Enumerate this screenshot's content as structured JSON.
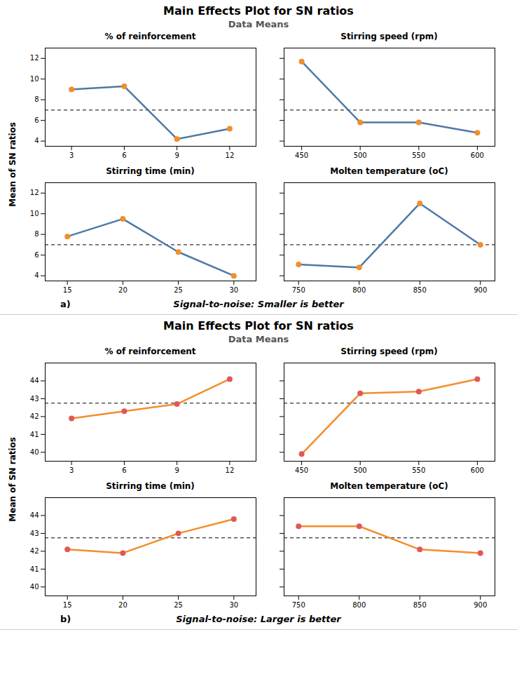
{
  "chart_data": [
    {
      "type": "line",
      "title": "Main Effects Plot for SN ratios",
      "subtitle": "Data Means",
      "ylabel": "Mean of SN ratios",
      "annotations": [
        "a)",
        "Signal-to-noise: Smaller is better"
      ],
      "charts": [
        {
          "type": "line",
          "title": "% of reinforcement",
          "x": [
            3,
            6,
            9,
            12
          ],
          "values": [
            9.0,
            9.3,
            4.2,
            5.2
          ],
          "xlim": [
            1.5,
            13.5
          ],
          "ylim": [
            3.5,
            13
          ],
          "xticks": [
            3,
            6,
            9,
            12
          ],
          "yticks": [
            4,
            6,
            8,
            10,
            12
          ],
          "reference_line": 7.0,
          "marker": "o",
          "line_style": "solid"
        },
        {
          "type": "line",
          "title": "Stirring speed (rpm)",
          "x": [
            450,
            500,
            550,
            600
          ],
          "values": [
            11.7,
            5.8,
            5.8,
            4.8
          ],
          "xlim": [
            435,
            615
          ],
          "ylim": [
            3.5,
            13
          ],
          "xticks": [
            450,
            500,
            550,
            600
          ],
          "yticks": [
            4,
            6,
            8,
            10,
            12
          ],
          "reference_line": 7.0,
          "marker": "o",
          "line_style": "solid",
          "tick_labels": "x"
        },
        {
          "type": "line",
          "title": "Stirring time (min)",
          "x": [
            15,
            20,
            25,
            30
          ],
          "values": [
            7.8,
            9.5,
            6.3,
            4.0
          ],
          "xlim": [
            13,
            32
          ],
          "ylim": [
            3.5,
            13
          ],
          "xticks": [
            15,
            20,
            25,
            30
          ],
          "yticks": [
            4,
            6,
            8,
            10,
            12
          ],
          "reference_line": 7.0,
          "marker": "o",
          "line_style": "solid"
        },
        {
          "type": "line",
          "title": "Molten temperature (oC)",
          "x": [
            750,
            800,
            850,
            900
          ],
          "values": [
            5.1,
            4.8,
            11.0,
            7.0
          ],
          "xlim": [
            738,
            912
          ],
          "ylim": [
            3.5,
            13
          ],
          "xticks": [
            750,
            800,
            850,
            900
          ],
          "yticks": [
            4,
            6,
            8,
            10,
            12
          ],
          "reference_line": 7.0,
          "marker": "o",
          "line_style": "solid",
          "tick_labels": "x"
        }
      ]
    },
    {
      "type": "line",
      "title": "Main Effects Plot for SN ratios",
      "subtitle": "Data Means",
      "ylabel": "Mean of SN ratios",
      "annotations": [
        "b)",
        "Signal-to-noise: Larger is better"
      ],
      "charts": [
        {
          "type": "line",
          "title": "% of reinforcement",
          "x": [
            3,
            6,
            9,
            12
          ],
          "values": [
            41.9,
            42.3,
            42.7,
            44.1
          ],
          "xlim": [
            1.5,
            13.5
          ],
          "ylim": [
            39.5,
            45
          ],
          "xticks": [
            3,
            6,
            9,
            12
          ],
          "yticks": [
            40,
            41,
            42,
            43,
            44
          ],
          "reference_line": 42.75,
          "marker": "o",
          "line_style": "solid"
        },
        {
          "type": "line",
          "title": "Stirring speed (rpm)",
          "x": [
            450,
            500,
            550,
            600
          ],
          "values": [
            39.9,
            43.3,
            43.4,
            44.1
          ],
          "xlim": [
            435,
            615
          ],
          "ylim": [
            39.5,
            45
          ],
          "xticks": [
            450,
            500,
            550,
            600
          ],
          "yticks": [
            40,
            41,
            42,
            43,
            44
          ],
          "reference_line": 42.75,
          "marker": "o",
          "line_style": "solid",
          "tick_labels": "x"
        },
        {
          "type": "line",
          "title": "Stirring time (min)",
          "x": [
            15,
            20,
            25,
            30
          ],
          "values": [
            42.1,
            41.9,
            43.0,
            43.8
          ],
          "xlim": [
            13,
            32
          ],
          "ylim": [
            39.5,
            45
          ],
          "xticks": [
            15,
            20,
            25,
            30
          ],
          "yticks": [
            40,
            41,
            42,
            43,
            44
          ],
          "reference_line": 42.75,
          "marker": "o",
          "line_style": "solid"
        },
        {
          "type": "line",
          "title": "Molten temperature (oC)",
          "x": [
            750,
            800,
            850,
            900
          ],
          "values": [
            43.4,
            43.4,
            42.1,
            41.9
          ],
          "xlim": [
            738,
            912
          ],
          "ylim": [
            39.5,
            45
          ],
          "xticks": [
            750,
            800,
            850,
            900
          ],
          "yticks": [
            40,
            41,
            42,
            43,
            44
          ],
          "reference_line": 42.75,
          "marker": "o",
          "line_style": "solid",
          "tick_labels": "x"
        }
      ]
    }
  ]
}
